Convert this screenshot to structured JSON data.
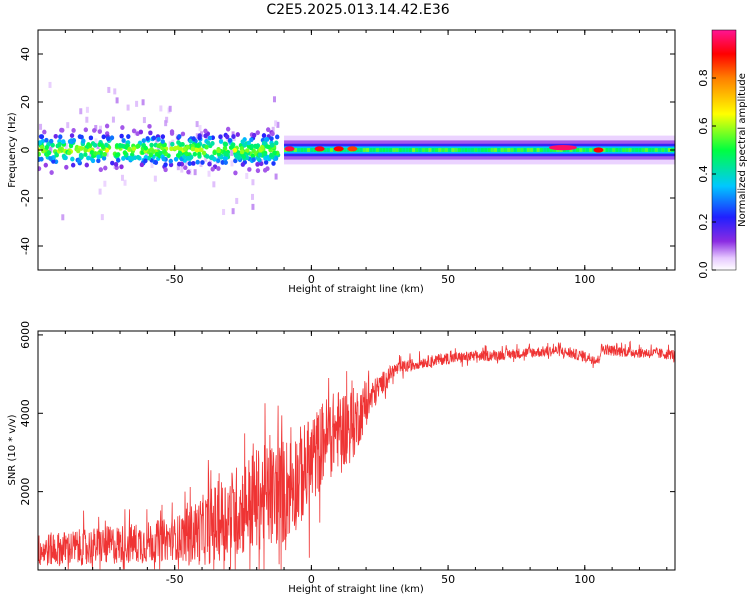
{
  "chart_data": [
    {
      "type": "heatmap",
      "title": "C2E5.2025.013.14.42.E36",
      "xlabel": "Height of straight line (km)",
      "ylabel": "Frequency (Hz)",
      "xlim": [
        -100,
        133
      ],
      "ylim": [
        -50,
        50
      ],
      "xticks": [
        "-50",
        "0",
        "50",
        "100"
      ],
      "yticks": [
        "-40",
        "-20",
        "0",
        "20",
        "40"
      ],
      "colorbar": {
        "label": "Normalized spectral amplitude",
        "range": [
          0,
          1
        ],
        "ticks": [
          "0.0",
          "0.2",
          "0.4",
          "0.6",
          "0.8"
        ],
        "colormap": "rainbow (white-violet-blue-cyan-green-yellow-red-magenta)"
      },
      "regions": [
        {
          "x": [
            -100,
            -12
          ],
          "freq_center": 0,
          "freq_spread": 12,
          "description": "noisy broad scatter"
        },
        {
          "x": [
            -10,
            133
          ],
          "freq_center": 0,
          "freq_spread": 4,
          "description": "narrow horizontal band"
        }
      ],
      "hot_spots": [
        {
          "x": -8,
          "f": 0.5,
          "amplitude": 0.95
        },
        {
          "x": 3,
          "f": 0.5,
          "amplitude": 0.92
        },
        {
          "x": 10,
          "f": 0.5,
          "amplitude": 0.9
        },
        {
          "x": 15,
          "f": 0.5,
          "amplitude": 0.85
        },
        {
          "x": 92,
          "f": 1,
          "amplitude": 0.97
        },
        {
          "x": 105,
          "f": 0,
          "amplitude": 0.9
        }
      ]
    },
    {
      "type": "line",
      "xlabel": "Height of straight line (km)",
      "ylabel": "SNR (10 * v/v)",
      "xlim": [
        -100,
        133
      ],
      "ylim": [
        0,
        6100
      ],
      "xticks": [
        "-50",
        "0",
        "50",
        "100"
      ],
      "yticks": [
        "2000",
        "4000",
        "6000"
      ],
      "color": "#ef3434",
      "series": [
        {
          "x": [
            -100,
            -80,
            -60,
            -50,
            -40,
            -30,
            -20,
            -10,
            0,
            5,
            10,
            15,
            20,
            25,
            30,
            40,
            50,
            60,
            70,
            80,
            90,
            100,
            105,
            106,
            110,
            120,
            133
          ],
          "mean": [
            500,
            600,
            700,
            800,
            1000,
            1400,
            1800,
            2000,
            2700,
            3400,
            3600,
            3700,
            4200,
            4700,
            5100,
            5300,
            5400,
            5450,
            5500,
            5550,
            5600,
            5450,
            5350,
            5650,
            5600,
            5550,
            5500
          ],
          "spread": [
            700,
            800,
            900,
            900,
            1500,
            1900,
            2200,
            2300,
            2000,
            1700,
            1700,
            1600,
            900,
            500,
            300,
            250,
            250,
            230,
            230,
            230,
            230,
            230,
            230,
            230,
            230,
            230,
            230
          ]
        }
      ]
    }
  ]
}
